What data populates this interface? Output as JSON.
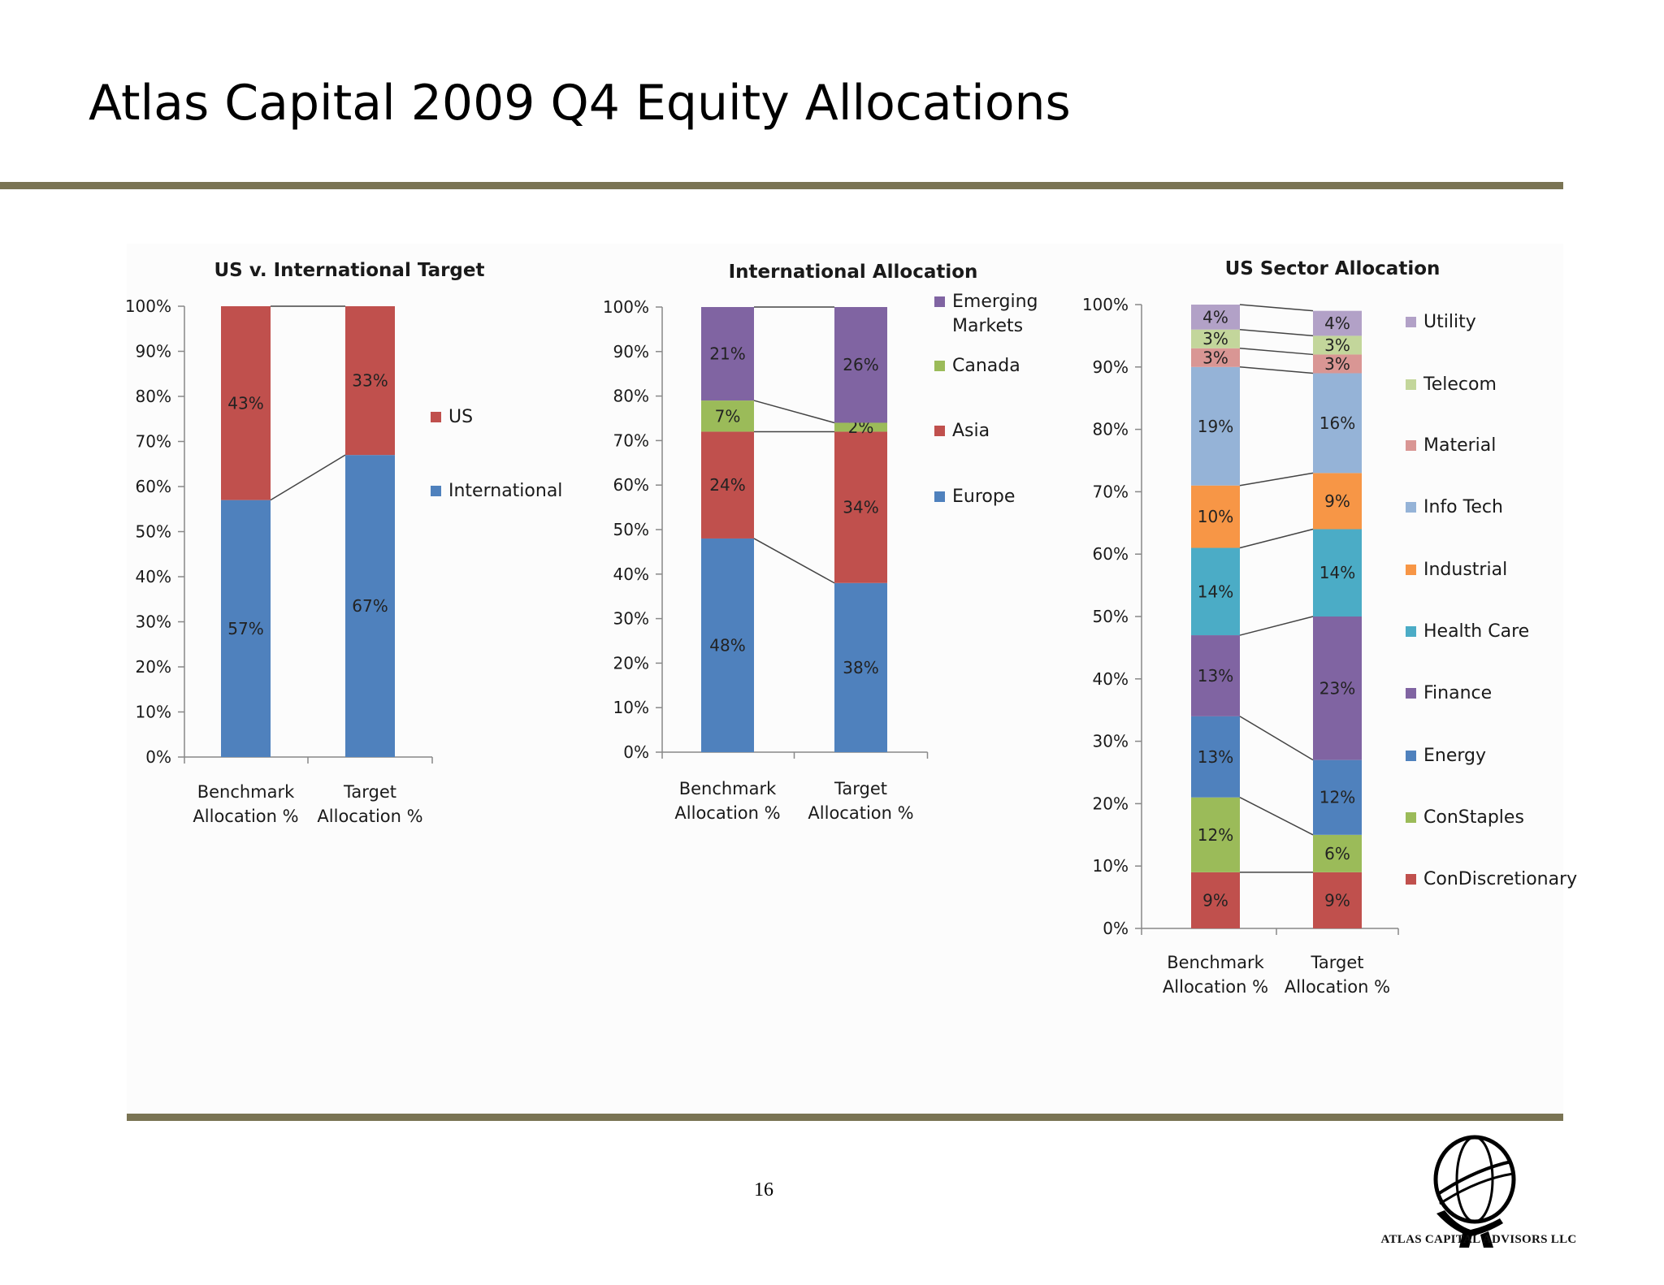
{
  "slide": {
    "title": "Atlas Capital 2009 Q4 Equity Allocations",
    "page_number": "16",
    "company": "ATLAS CAPITAL ADVISORS LLC",
    "rule_color": "#7a7454"
  },
  "chart_data": [
    {
      "type": "bar",
      "stacked": true,
      "title": "US v. International Target",
      "categories": [
        "Benchmark Allocation %",
        "Target Allocation %"
      ],
      "ylim": [
        0,
        100
      ],
      "yticks": [
        "0%",
        "10%",
        "20%",
        "30%",
        "40%",
        "50%",
        "60%",
        "70%",
        "80%",
        "90%",
        "100%"
      ],
      "series": [
        {
          "name": "International",
          "color": "#4f81bd",
          "values": [
            57,
            67
          ],
          "labels": [
            "57%",
            "67%"
          ]
        },
        {
          "name": "US",
          "color": "#c0504d",
          "values": [
            43,
            33
          ],
          "labels": [
            "43%",
            "33%"
          ]
        }
      ],
      "legend_order": [
        "US",
        "International"
      ]
    },
    {
      "type": "bar",
      "stacked": true,
      "title": "International Allocation",
      "categories": [
        "Benchmark Allocation %",
        "Target Allocation %"
      ],
      "ylim": [
        0,
        100
      ],
      "yticks": [
        "0%",
        "10%",
        "20%",
        "30%",
        "40%",
        "50%",
        "60%",
        "70%",
        "80%",
        "90%",
        "100%"
      ],
      "series": [
        {
          "name": "Europe",
          "color": "#4f81bd",
          "values": [
            48,
            38
          ],
          "labels": [
            "48%",
            "38%"
          ]
        },
        {
          "name": "Asia",
          "color": "#c0504d",
          "values": [
            24,
            34
          ],
          "labels": [
            "24%",
            "34%"
          ]
        },
        {
          "name": "Canada",
          "color": "#9bbb59",
          "values": [
            7,
            2
          ],
          "labels": [
            "7%",
            "2%"
          ]
        },
        {
          "name": "Emerging Markets",
          "color": "#8064a2",
          "values": [
            21,
            26
          ],
          "labels": [
            "21%",
            "26%"
          ]
        }
      ],
      "legend_order": [
        "Emerging Markets",
        "Canada",
        "Asia",
        "Europe"
      ]
    },
    {
      "type": "bar",
      "stacked": true,
      "title": "US Sector Allocation",
      "categories": [
        "Benchmark Allocation %",
        "Target Allocation %"
      ],
      "ylim": [
        0,
        100
      ],
      "yticks": [
        "0%",
        "10%",
        "20%",
        "30%",
        "40%",
        "50%",
        "60%",
        "70%",
        "80%",
        "90%",
        "100%"
      ],
      "series": [
        {
          "name": "ConDiscretionary",
          "color": "#c0504d",
          "values": [
            9,
            9
          ],
          "labels": [
            "9%",
            "9%"
          ]
        },
        {
          "name": "ConStaples",
          "color": "#9bbb59",
          "values": [
            12,
            6
          ],
          "labels": [
            "12%",
            "6%"
          ]
        },
        {
          "name": "Energy",
          "color": "#4f81bd",
          "values": [
            13,
            12
          ],
          "labels": [
            "13%",
            "12%"
          ]
        },
        {
          "name": "Finance",
          "color": "#8064a2",
          "values": [
            13,
            23
          ],
          "labels": [
            "13%",
            "23%"
          ]
        },
        {
          "name": "Health Care",
          "color": "#4bacc6",
          "values": [
            14,
            14
          ],
          "labels": [
            "14%",
            "14%"
          ]
        },
        {
          "name": "Industrial",
          "color": "#f79646",
          "values": [
            10,
            9
          ],
          "labels": [
            "10%",
            "9%"
          ]
        },
        {
          "name": "Info Tech",
          "color": "#95b3d7",
          "values": [
            19,
            16
          ],
          "labels": [
            "19%",
            "16%"
          ]
        },
        {
          "name": "Material",
          "color": "#d99694",
          "values": [
            3,
            3
          ],
          "labels": [
            "3%",
            "3%"
          ]
        },
        {
          "name": "Telecom",
          "color": "#c3d69b",
          "values": [
            3,
            3
          ],
          "labels": [
            "3%",
            "3%"
          ]
        },
        {
          "name": "Utility",
          "color": "#b2a1c7",
          "values": [
            4,
            4
          ],
          "labels": [
            "4%",
            "4%"
          ]
        }
      ],
      "legend_order": [
        "Utility",
        "Telecom",
        "Material",
        "Info Tech",
        "Industrial",
        "Health Care",
        "Finance",
        "Energy",
        "ConStaples",
        "ConDiscretionary"
      ]
    }
  ]
}
